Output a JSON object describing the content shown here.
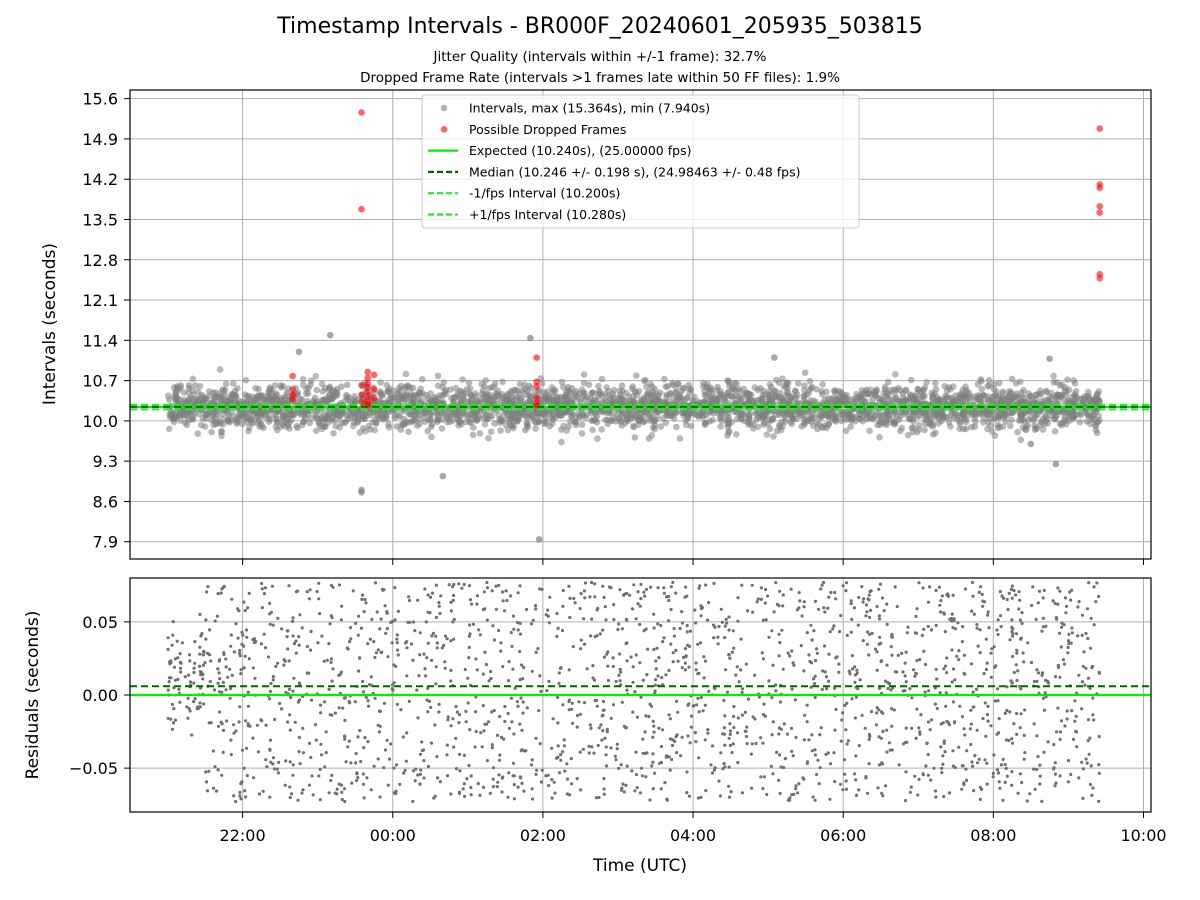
{
  "figure": {
    "title": "Timestamp Intervals - BR000F_20240601_205935_503815",
    "subtitle_1": "Jitter Quality (intervals within +/-1 frame): 32.7%",
    "subtitle_2": "Dropped Frame Rate (intervals >1 frames late within 50 FF files): 1.9%"
  },
  "colors": {
    "intervals": "#808080",
    "dropped": "#ff0000",
    "expected": "#00ee00",
    "median": "#006400",
    "fps_interval": "#22ee22",
    "residuals": "#707070",
    "grid": "#b0b0b0"
  },
  "chart_data": [
    {
      "type": "scatter",
      "ylabel": "Intervals (seconds)",
      "x_axis": "time (UTC), hours since 00:00",
      "xlim": [
        -3.5,
        10.1
      ],
      "ylim": [
        7.6,
        15.75
      ],
      "y_ticks": [
        "7.9",
        "8.6",
        "9.3",
        "10.0",
        "10.7",
        "11.4",
        "12.1",
        "12.8",
        "13.5",
        "14.2",
        "14.9",
        "15.6"
      ],
      "x_ticks": [
        "22:00",
        "00:00",
        "02:00",
        "04:00",
        "06:00",
        "08:00",
        "10:00"
      ],
      "grid": true,
      "legend_position": "top-center",
      "legend": [
        "Intervals, max (15.364s), min (7.940s)",
        "Possible Dropped Frames",
        "Expected (10.240s), (25.00000 fps)",
        "Median (10.246 +/- 0.198 s), (24.98463 +/- 0.48 fps)",
        "-1/fps Interval (10.200s)",
        "+1/fps Interval (10.280s)"
      ],
      "lines": {
        "expected": 10.24,
        "median": 10.246,
        "minus_1_fps": 10.2,
        "plus_1_fps": 10.28
      },
      "data_span": {
        "start": "21:00",
        "end": "09:25"
      },
      "interval_stats": {
        "max": 15.364,
        "min": 7.94,
        "median": 10.246,
        "std": 0.198
      },
      "notable_intervals": [
        {
          "time": "23:35",
          "value": 8.8
        },
        {
          "time": "23:35",
          "value": 8.76
        },
        {
          "time": "00:40",
          "value": 9.04
        },
        {
          "time": "01:57",
          "value": 7.94
        },
        {
          "time": "23:10",
          "value": 11.49
        },
        {
          "time": "01:50",
          "value": 11.44
        },
        {
          "time": "05:05",
          "value": 11.1
        },
        {
          "time": "08:45",
          "value": 11.08
        },
        {
          "time": "08:30",
          "value": 9.6
        },
        {
          "time": "08:50",
          "value": 9.25
        },
        {
          "time": "22:45",
          "value": 11.2
        }
      ],
      "dropped_frames": [
        {
          "time": "23:35",
          "value": 15.36
        },
        {
          "time": "23:35",
          "value": 13.68
        },
        {
          "time": "22:40",
          "value": 10.78
        },
        {
          "time": "22:40",
          "value": 10.55
        },
        {
          "time": "22:40",
          "value": 10.45
        },
        {
          "time": "22:40",
          "value": 10.38
        },
        {
          "time": "23:40",
          "value": 10.85
        },
        {
          "time": "23:40",
          "value": 10.75
        },
        {
          "time": "23:40",
          "value": 10.65
        },
        {
          "time": "23:40",
          "value": 10.58
        },
        {
          "time": "23:40",
          "value": 10.5
        },
        {
          "time": "23:40",
          "value": 10.42
        },
        {
          "time": "23:40",
          "value": 10.36
        },
        {
          "time": "23:40",
          "value": 10.3
        },
        {
          "time": "23:40",
          "value": 10.27
        },
        {
          "time": "23:35",
          "value": 10.62
        },
        {
          "time": "23:35",
          "value": 10.45
        },
        {
          "time": "23:35",
          "value": 10.32
        },
        {
          "time": "23:45",
          "value": 10.8
        },
        {
          "time": "23:45",
          "value": 10.55
        },
        {
          "time": "23:45",
          "value": 10.4
        },
        {
          "time": "01:55",
          "value": 11.1
        },
        {
          "time": "01:55",
          "value": 10.68
        },
        {
          "time": "01:55",
          "value": 10.6
        },
        {
          "time": "01:55",
          "value": 10.4
        },
        {
          "time": "01:55",
          "value": 10.32
        },
        {
          "time": "01:55",
          "value": 10.27
        },
        {
          "time": "09:25",
          "value": 15.08
        },
        {
          "time": "09:25",
          "value": 14.11
        },
        {
          "time": "09:25",
          "value": 14.05
        },
        {
          "time": "09:25",
          "value": 13.73
        },
        {
          "time": "09:25",
          "value": 13.62
        },
        {
          "time": "09:25",
          "value": 12.55
        },
        {
          "time": "09:25",
          "value": 12.48
        }
      ]
    },
    {
      "type": "scatter",
      "xlabel": "Time (UTC)",
      "ylabel": "Residuals (seconds)",
      "ylim": [
        -0.08,
        0.08
      ],
      "y_ticks": [
        "−0.05",
        "0.00",
        "0.05"
      ],
      "x_ticks": [
        "22:00",
        "00:00",
        "02:00",
        "04:00",
        "06:00",
        "08:00",
        "10:00"
      ],
      "grid": true,
      "lines": {
        "zero": 0.0,
        "median_offset": 0.006
      }
    }
  ]
}
